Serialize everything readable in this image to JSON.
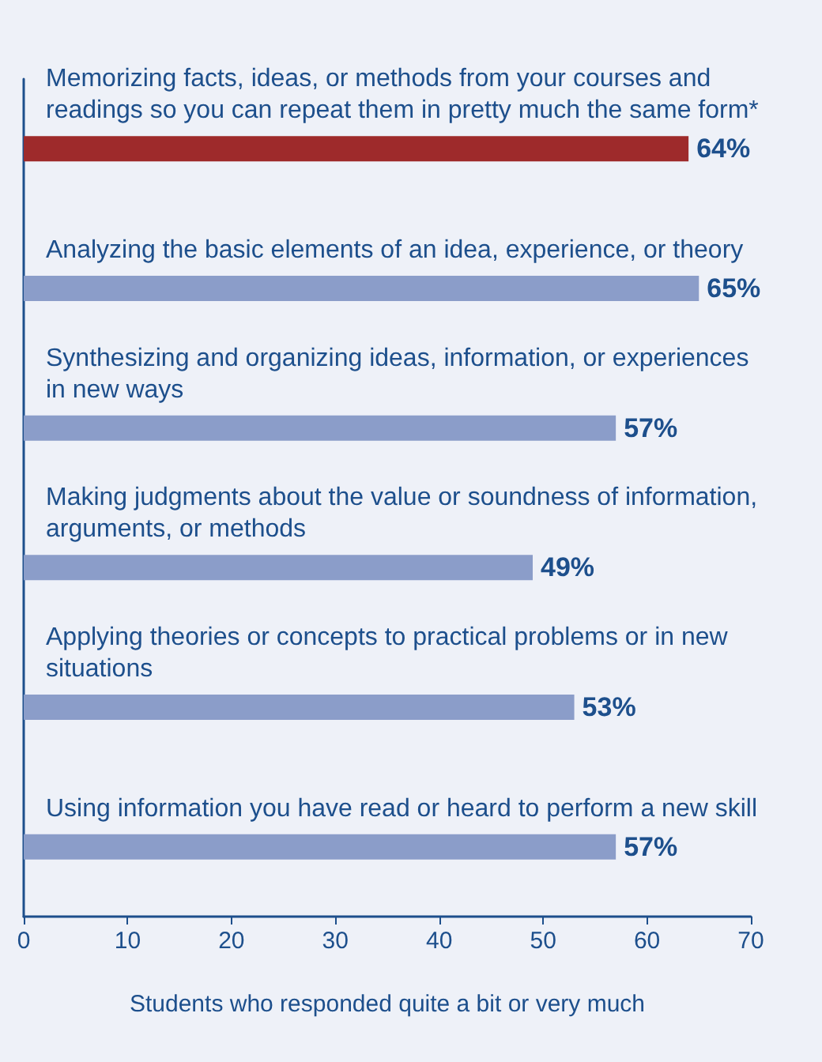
{
  "chart_data": {
    "type": "bar",
    "orientation": "horizontal",
    "categories": [
      "Memorizing facts, ideas, or methods from your courses and readings so you can repeat them in pretty much the same form*",
      "Analyzing the basic elements of an idea, experience, or theory",
      "Synthesizing and organizing ideas, information, or experiences in new ways",
      "Making judgments about the value or soundness of information, arguments, or methods",
      "Applying theories or concepts to practical problems or in new situations",
      "Using information you have read or heard to perform a new skill"
    ],
    "values": [
      64,
      65,
      57,
      49,
      53,
      57
    ],
    "value_labels": [
      "64%",
      "65%",
      "57%",
      "49%",
      "53%",
      "57%"
    ],
    "colors": [
      "#9e2a2b",
      "#8b9dc9",
      "#8b9dc9",
      "#8b9dc9",
      "#8b9dc9",
      "#8b9dc9"
    ],
    "xlim": [
      0,
      70
    ],
    "xticks": [
      0,
      10,
      20,
      30,
      40,
      50,
      60,
      70
    ],
    "xlabel": "Students who responded quite a bit or very much",
    "grid": false
  }
}
